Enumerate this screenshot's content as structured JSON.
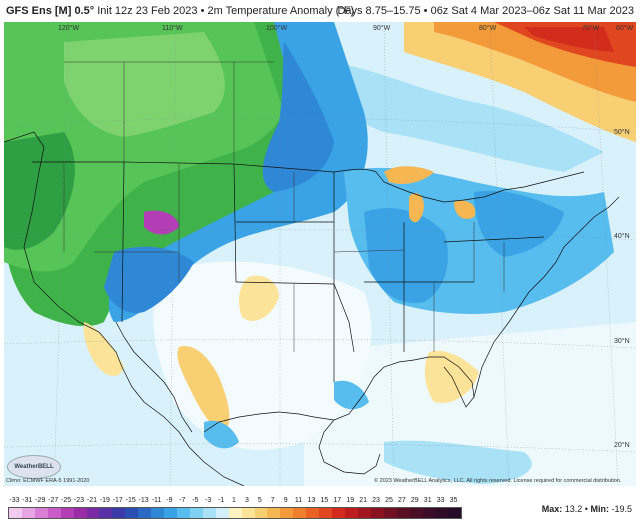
{
  "header": {
    "model": "GFS Ens [M] 0.5°",
    "init": "Init 12z 23 Feb 2023",
    "separator": "•",
    "field": "2m Temperature Anomaly (°F)",
    "valid": "Days 8.75–15.75 • 06z Sat 4 Mar 2023–06z Sat 11 Mar 2023"
  },
  "map": {
    "lon_labels": [
      "120°W",
      "110°W",
      "100°W",
      "90°W",
      "80°W",
      "70°W",
      "60°W"
    ],
    "lat_labels": [
      "50°N",
      "40°N",
      "30°N",
      "20°N"
    ]
  },
  "footer": {
    "climo": "Climo: ECMWF ERA-5 1991-2020",
    "copyright": "© 2023 WeatherBELL Analytics, LLC. All rights reserved. License required for commercial distribution.",
    "logo": "WeatherBELL"
  },
  "colorbar": {
    "ticks": [
      "-33",
      "-31",
      "-29",
      "-27",
      "-25",
      "-23",
      "-21",
      "-19",
      "-17",
      "-15",
      "-13",
      "-11",
      "-9",
      "-7",
      "-5",
      "-3",
      "-1",
      "1",
      "3",
      "5",
      "7",
      "9",
      "11",
      "13",
      "15",
      "17",
      "19",
      "21",
      "23",
      "25",
      "27",
      "29",
      "31",
      "33",
      "35"
    ],
    "colors": [
      "#f2c9ef",
      "#e7a5e4",
      "#d97fd6",
      "#c95cc6",
      "#b23db4",
      "#9a2ca6",
      "#7a2aa5",
      "#5a32a8",
      "#3b3aa8",
      "#2a4fb4",
      "#2a6ac4",
      "#2e88d6",
      "#39a3e6",
      "#57bcee",
      "#7fd1f2",
      "#a9e2f6",
      "#d3f0fa",
      "#fdf3c0",
      "#fbe39a",
      "#f9cf74",
      "#f6b652",
      "#f39b3a",
      "#ef7f2c",
      "#e96224",
      "#e0461f",
      "#d22d1c",
      "#bd1e1d",
      "#a4161f",
      "#8a111f",
      "#701022",
      "#5a0f25",
      "#4a0e27",
      "#3c0d28",
      "#300c28",
      "#260b28"
    ]
  },
  "stats": {
    "max_label": "Max:",
    "max": "13.2",
    "sep": "•",
    "min_label": "Min:",
    "min": "-19.5"
  }
}
